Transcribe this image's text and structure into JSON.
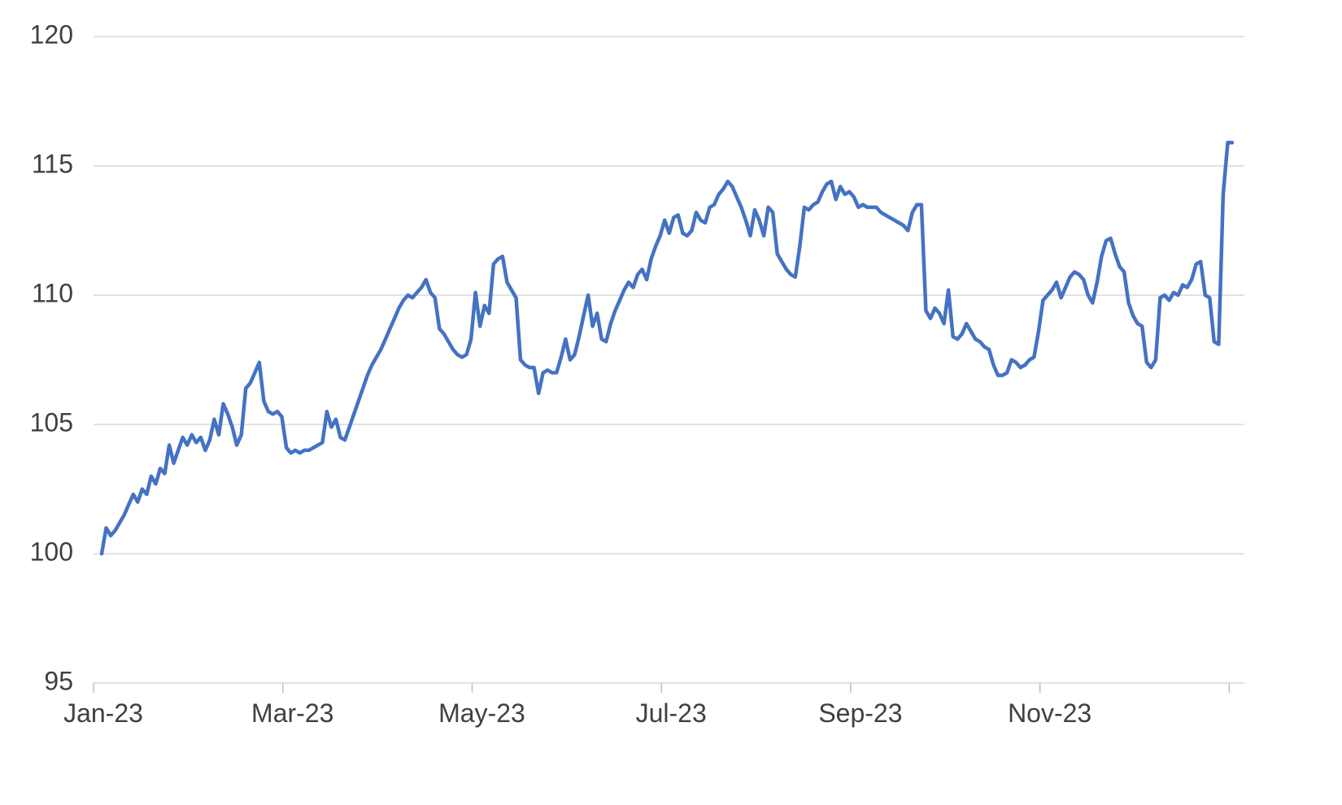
{
  "chart_data": {
    "type": "line",
    "title": "",
    "xlabel": "",
    "ylabel": "",
    "legend": "none",
    "grid": "horizontal",
    "ylim": [
      95,
      120
    ],
    "y_ticks": [
      95,
      100,
      105,
      110,
      115,
      120
    ],
    "x_tick_labels": [
      "Jan-23",
      "Mar-23",
      "May-23",
      "Jul-23",
      "Sep-23",
      "Nov-23"
    ],
    "x_tick_step_months": 2,
    "points_per_month": 21,
    "line_color": "#4472C4",
    "line_width": 4.5,
    "gridline_color": "#D9D9D9",
    "tick_color": "#BFBFBF",
    "axis_label_color": "#404040",
    "background_color": "#FFFFFF",
    "values": [
      100.0,
      101.0,
      100.7,
      100.9,
      101.2,
      101.5,
      101.9,
      102.3,
      102.0,
      102.5,
      102.3,
      103.0,
      102.7,
      103.3,
      103.1,
      104.2,
      103.5,
      104.0,
      104.5,
      104.2,
      104.6,
      104.3,
      104.5,
      104.0,
      104.4,
      105.2,
      104.6,
      105.8,
      105.4,
      104.9,
      104.2,
      104.6,
      106.4,
      106.6,
      107.0,
      107.4,
      105.9,
      105.5,
      105.4,
      105.5,
      105.3,
      104.1,
      103.9,
      104.0,
      103.9,
      104.0,
      104.0,
      104.1,
      104.2,
      104.3,
      105.5,
      104.9,
      105.2,
      104.5,
      104.4,
      104.9,
      105.4,
      105.9,
      106.4,
      106.9,
      107.3,
      107.6,
      107.9,
      108.3,
      108.7,
      109.1,
      109.5,
      109.8,
      110.0,
      109.9,
      110.1,
      110.3,
      110.6,
      110.1,
      109.9,
      108.7,
      108.5,
      108.2,
      107.9,
      107.7,
      107.6,
      107.7,
      108.3,
      110.1,
      108.8,
      109.6,
      109.3,
      111.2,
      111.4,
      111.5,
      110.5,
      110.2,
      109.9,
      107.5,
      107.3,
      107.2,
      107.2,
      106.2,
      107.0,
      107.1,
      107.0,
      107.0,
      107.6,
      108.3,
      107.5,
      107.7,
      108.4,
      109.2,
      110.0,
      108.8,
      109.3,
      108.3,
      108.2,
      108.9,
      109.4,
      109.8,
      110.2,
      110.5,
      110.3,
      110.8,
      111.0,
      110.6,
      111.4,
      111.9,
      112.3,
      112.9,
      112.4,
      113.0,
      113.1,
      112.4,
      112.3,
      112.5,
      113.2,
      112.9,
      112.8,
      113.4,
      113.5,
      113.9,
      114.1,
      114.4,
      114.2,
      113.8,
      113.4,
      112.9,
      112.3,
      113.3,
      112.9,
      112.3,
      113.4,
      113.2,
      111.6,
      111.3,
      111.0,
      110.8,
      110.7,
      111.9,
      113.4,
      113.3,
      113.5,
      113.6,
      114.0,
      114.3,
      114.4,
      113.7,
      114.2,
      113.9,
      114.0,
      113.8,
      113.4,
      113.5,
      113.4,
      113.4,
      113.4,
      113.2,
      113.1,
      113.0,
      112.9,
      112.8,
      112.7,
      112.5,
      113.2,
      113.5,
      113.5,
      109.4,
      109.1,
      109.5,
      109.3,
      108.9,
      110.2,
      108.4,
      108.3,
      108.5,
      108.9,
      108.6,
      108.3,
      108.2,
      108.0,
      107.9,
      107.3,
      106.9,
      106.9,
      107.0,
      107.5,
      107.4,
      107.2,
      107.3,
      107.5,
      107.6,
      108.6,
      109.8,
      110.0,
      110.2,
      110.5,
      109.9,
      110.3,
      110.7,
      110.9,
      110.8,
      110.6,
      110.0,
      109.7,
      110.5,
      111.5,
      112.1,
      112.2,
      111.6,
      111.1,
      110.9,
      109.7,
      109.2,
      108.9,
      108.8,
      107.4,
      107.2,
      107.5,
      109.9,
      110.0,
      109.8,
      110.1,
      110.0,
      110.4,
      110.3,
      110.6,
      111.2,
      111.3,
      110.0,
      109.9,
      108.2,
      108.1,
      113.9,
      115.9,
      115.9
    ]
  }
}
